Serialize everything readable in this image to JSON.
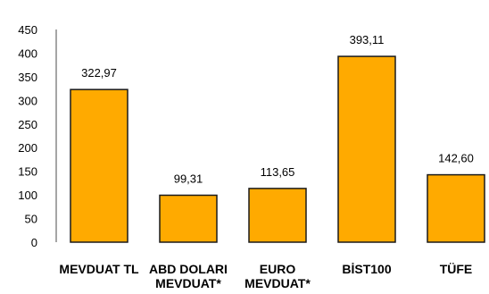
{
  "chart_data": {
    "type": "bar",
    "categories": [
      [
        "MEVDUAT TL"
      ],
      [
        "ABD DOLARI",
        "MEVDUAT*"
      ],
      [
        "EURO",
        "MEVDUAT*"
      ],
      [
        "BİST100"
      ],
      [
        "TÜFE"
      ]
    ],
    "values": [
      322.97,
      99.31,
      113.65,
      393.11,
      142.6
    ],
    "value_labels": [
      "322,97",
      "99,31",
      "113,65",
      "393,11",
      "142,60"
    ],
    "ylim": [
      0,
      450
    ],
    "yticks": [
      0,
      50,
      100,
      150,
      200,
      250,
      300,
      350,
      400,
      450
    ],
    "ytick_labels": [
      "0",
      "50",
      "100",
      "150",
      "200",
      "250",
      "300",
      "350",
      "400",
      "450"
    ],
    "grid": false,
    "bar_color": "#FFAA00",
    "bar_edge_color": "#1a1a1a",
    "axis_color": "#888888"
  }
}
